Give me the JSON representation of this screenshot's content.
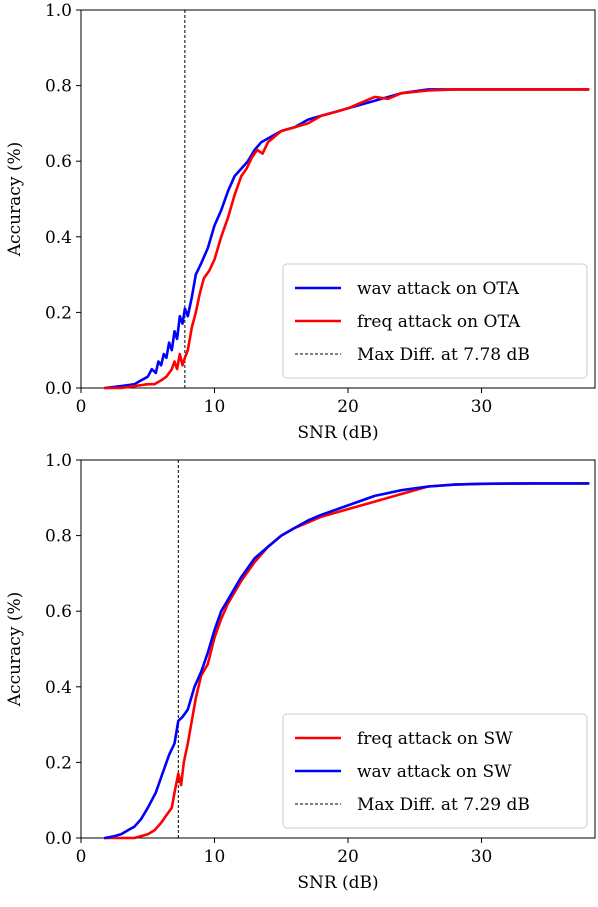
{
  "colors": {
    "wav": "#0000ff",
    "freq": "#ff0000",
    "marker": "#000000"
  },
  "chart_data": [
    {
      "type": "line",
      "xlabel": "SNR (dB)",
      "ylabel": "Accuracy (%)",
      "xlim": [
        0,
        38.5
      ],
      "ylim": [
        0.0,
        1.0
      ],
      "xticks": [
        0,
        10,
        20,
        30
      ],
      "yticks": [
        0.0,
        0.2,
        0.4,
        0.6,
        0.8,
        1.0
      ],
      "xtick_labels": [
        "0",
        "10",
        "20",
        "30"
      ],
      "ytick_labels": [
        "0.0",
        "0.2",
        "0.4",
        "0.6",
        "0.8",
        "1.0"
      ],
      "grid": false,
      "legend_position": "bottom-right",
      "vline": {
        "x": 7.78,
        "label": "Max Diff. at 7.78 dB"
      },
      "series": [
        {
          "name": "wav attack on OTA",
          "color_key": "wav",
          "x": [
            1.8,
            3,
            4,
            4.5,
            5,
            5.3,
            5.6,
            5.8,
            6.0,
            6.2,
            6.4,
            6.6,
            6.8,
            7.0,
            7.2,
            7.4,
            7.6,
            7.78,
            8.0,
            8.3,
            8.6,
            9.0,
            9.5,
            10,
            10.5,
            11,
            11.5,
            12,
            12.5,
            13,
            13.5,
            14,
            15,
            16,
            17,
            18,
            19,
            20,
            22,
            24,
            26,
            28,
            30,
            34,
            38
          ],
          "y": [
            0.0,
            0.005,
            0.01,
            0.02,
            0.03,
            0.05,
            0.04,
            0.07,
            0.06,
            0.09,
            0.08,
            0.12,
            0.1,
            0.15,
            0.13,
            0.19,
            0.17,
            0.21,
            0.19,
            0.24,
            0.3,
            0.33,
            0.37,
            0.43,
            0.47,
            0.52,
            0.56,
            0.58,
            0.6,
            0.63,
            0.65,
            0.66,
            0.68,
            0.69,
            0.71,
            0.72,
            0.73,
            0.74,
            0.76,
            0.78,
            0.79,
            0.79,
            0.79,
            0.79,
            0.79
          ]
        },
        {
          "name": "freq attack on OTA",
          "color_key": "freq",
          "x": [
            1.8,
            3,
            4,
            5,
            5.5,
            6,
            6.4,
            6.8,
            7.0,
            7.2,
            7.4,
            7.6,
            7.78,
            8.0,
            8.3,
            8.6,
            8.9,
            9.2,
            9.6,
            10,
            10.5,
            11,
            11.5,
            12,
            12.4,
            12.8,
            13.2,
            13.6,
            14,
            15,
            16,
            17,
            18,
            19,
            20,
            21,
            22,
            23,
            24,
            26,
            28,
            30,
            34,
            38
          ],
          "y": [
            0.0,
            0.0,
            0.005,
            0.01,
            0.01,
            0.02,
            0.03,
            0.05,
            0.07,
            0.05,
            0.09,
            0.06,
            0.08,
            0.1,
            0.16,
            0.2,
            0.25,
            0.29,
            0.31,
            0.34,
            0.4,
            0.45,
            0.51,
            0.56,
            0.58,
            0.61,
            0.63,
            0.62,
            0.65,
            0.68,
            0.69,
            0.7,
            0.72,
            0.73,
            0.74,
            0.755,
            0.77,
            0.765,
            0.78,
            0.787,
            0.79,
            0.79,
            0.79,
            0.79
          ]
        }
      ]
    },
    {
      "type": "line",
      "xlabel": "SNR (dB)",
      "ylabel": "Accuracy (%)",
      "xlim": [
        0,
        38.5
      ],
      "ylim": [
        0.0,
        1.0
      ],
      "xticks": [
        0,
        10,
        20,
        30
      ],
      "yticks": [
        0.0,
        0.2,
        0.4,
        0.6,
        0.8,
        1.0
      ],
      "xtick_labels": [
        "0",
        "10",
        "20",
        "30"
      ],
      "ytick_labels": [
        "0.0",
        "0.2",
        "0.4",
        "0.6",
        "0.8",
        "1.0"
      ],
      "grid": false,
      "legend_position": "bottom-right",
      "vline": {
        "x": 7.29,
        "label": "Max Diff. at 7.29 dB"
      },
      "series": [
        {
          "name": "freq attack on SW",
          "color_key": "freq",
          "x": [
            1.8,
            3,
            4,
            5,
            5.5,
            6,
            6.4,
            6.8,
            7.0,
            7.29,
            7.5,
            7.7,
            8.0,
            8.3,
            8.6,
            9.0,
            9.5,
            10,
            10.5,
            11,
            11.5,
            12,
            13,
            14,
            15,
            16,
            17,
            18,
            20,
            22,
            24,
            26,
            28,
            30,
            34,
            38
          ],
          "y": [
            0.0,
            0.0,
            0.0,
            0.01,
            0.02,
            0.04,
            0.06,
            0.08,
            0.12,
            0.17,
            0.14,
            0.2,
            0.25,
            0.31,
            0.37,
            0.43,
            0.46,
            0.53,
            0.58,
            0.62,
            0.65,
            0.68,
            0.73,
            0.77,
            0.8,
            0.82,
            0.835,
            0.85,
            0.87,
            0.89,
            0.91,
            0.93,
            0.935,
            0.937,
            0.938,
            0.938
          ]
        },
        {
          "name": "wav attack on SW",
          "color_key": "wav",
          "x": [
            1.8,
            2.5,
            3,
            3.5,
            4,
            4.5,
            5,
            5.3,
            5.6,
            6.0,
            6.3,
            6.6,
            7.0,
            7.29,
            7.6,
            8.0,
            8.5,
            9.0,
            9.5,
            10,
            10.5,
            11,
            11.5,
            12,
            13,
            14,
            15,
            16,
            17,
            18,
            20,
            22,
            24,
            26,
            28,
            30,
            34,
            38
          ],
          "y": [
            0.0,
            0.005,
            0.01,
            0.02,
            0.03,
            0.05,
            0.08,
            0.1,
            0.12,
            0.16,
            0.19,
            0.22,
            0.25,
            0.31,
            0.32,
            0.34,
            0.4,
            0.44,
            0.49,
            0.55,
            0.6,
            0.63,
            0.66,
            0.69,
            0.74,
            0.77,
            0.8,
            0.82,
            0.84,
            0.855,
            0.88,
            0.905,
            0.92,
            0.93,
            0.935,
            0.937,
            0.938,
            0.938
          ]
        }
      ]
    }
  ]
}
